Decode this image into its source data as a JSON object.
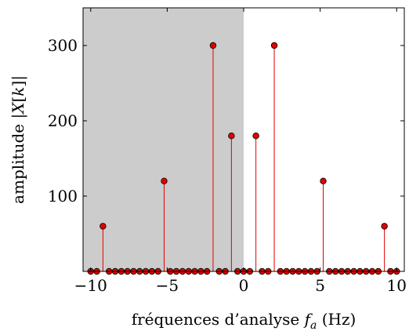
{
  "chart_data": {
    "type": "stem",
    "xlabel": "fréquences d’analyse f_a (Hz)",
    "xlabel_parts": {
      "prefix": "fréquences d’analyse ",
      "var": "f",
      "sub": "a",
      "suffix": " (Hz)"
    },
    "ylabel": "amplitude |X[k]|",
    "ylabel_parts": {
      "prefix": "amplitude |",
      "var": "X",
      "open": "[",
      "idx": "k",
      "close": "]|"
    },
    "xlim": [
      -10.5,
      10.5
    ],
    "ylim": [
      0,
      350
    ],
    "xticks": [
      -10,
      -5,
      0,
      5,
      10
    ],
    "xtick_labels": [
      "−10",
      "−5",
      "0",
      "5",
      "10"
    ],
    "yticks": [
      100,
      200,
      300
    ],
    "ytick_labels": [
      "100",
      "200",
      "300"
    ],
    "shaded_region": {
      "x_from": -10.5,
      "x_to": 0,
      "color": "#cccccc"
    },
    "marker_color": "#e00000",
    "stem_color": "#e00000",
    "x": [
      -10,
      -9.6,
      -9.2,
      -8.8,
      -8.4,
      -8,
      -7.6,
      -7.2,
      -6.8,
      -6.4,
      -6,
      -5.6,
      -5.2,
      -4.8,
      -4.4,
      -4,
      -3.6,
      -3.2,
      -2.8,
      -2.4,
      -2,
      -1.6,
      -1.2,
      -0.8,
      -0.4,
      0,
      0.4,
      0.8,
      1.2,
      1.6,
      2,
      2.4,
      2.8,
      3.2,
      3.6,
      4,
      4.4,
      4.8,
      5.2,
      5.6,
      6,
      6.4,
      6.8,
      7.2,
      7.6,
      8,
      8.4,
      8.8,
      9.2,
      9.6,
      10
    ],
    "values": [
      0,
      0,
      60,
      0,
      0,
      0,
      0,
      0,
      0,
      0,
      0,
      0,
      120,
      0,
      0,
      0,
      0,
      0,
      0,
      0,
      300,
      0,
      0,
      180,
      0,
      0,
      0,
      180,
      0,
      0,
      300,
      0,
      0,
      0,
      0,
      0,
      0,
      0,
      120,
      0,
      0,
      0,
      0,
      0,
      0,
      0,
      0,
      0,
      60,
      0,
      0
    ]
  }
}
